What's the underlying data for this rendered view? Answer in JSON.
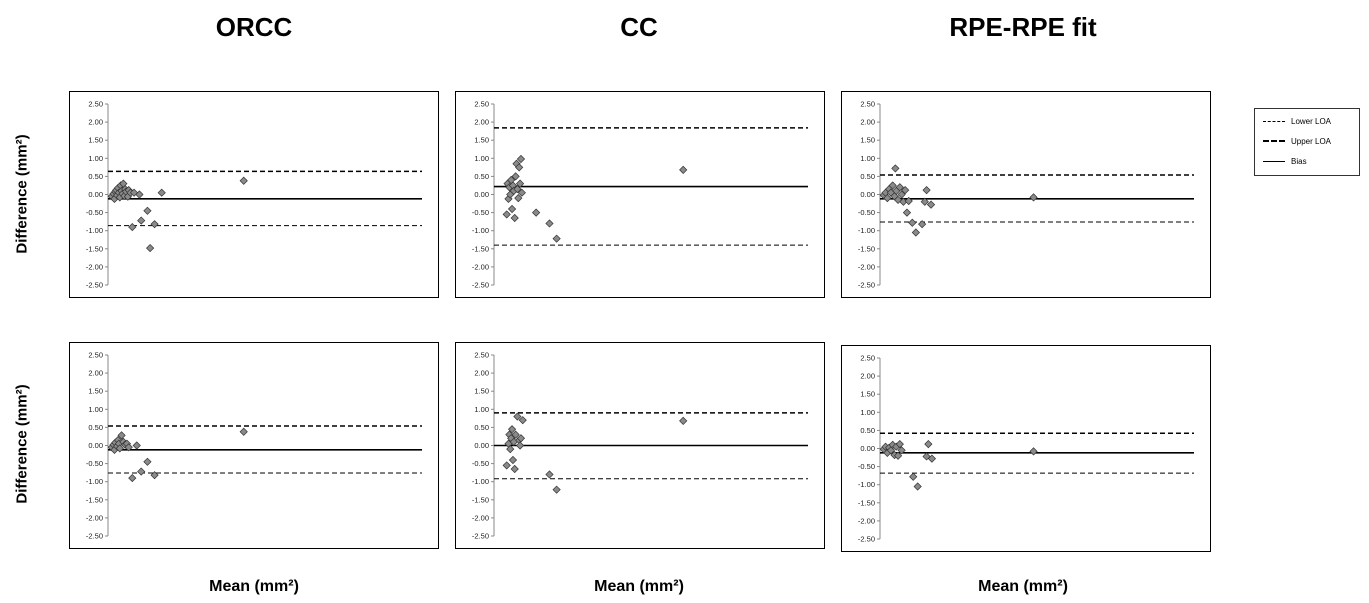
{
  "column_titles": [
    "ORCC",
    "CC",
    "RPE-RPE fit"
  ],
  "y_axis_label": "Difference (mm²)",
  "x_axis_label": "Mean (mm²)",
  "legend": [
    {
      "label": "Lower LOA",
      "style": "dashed",
      "width": 1
    },
    {
      "label": "Upper LOA",
      "style": "dashed",
      "width": 1.5
    },
    {
      "label": "Bias",
      "style": "solid",
      "width": 1
    }
  ],
  "chart_data": [
    {
      "type": "scatter",
      "title": "ORCC",
      "row": 1,
      "ylim": [
        -2.5,
        2.5
      ],
      "yticks": [
        "2.50",
        "2.00",
        "1.50",
        "1.00",
        "0.50",
        "0.00",
        "-0.50",
        "-1.00",
        "-1.50",
        "-2.00",
        "-2.50"
      ],
      "bias": -0.12,
      "lower_loa": -0.86,
      "upper_loa": 0.64,
      "points": [
        [
          0.02,
          -0.05
        ],
        [
          0.04,
          0.02
        ],
        [
          0.05,
          -0.12
        ],
        [
          0.06,
          0.08
        ],
        [
          0.07,
          0.12
        ],
        [
          0.08,
          -0.02
        ],
        [
          0.09,
          0.18
        ],
        [
          0.1,
          0.05
        ],
        [
          0.11,
          -0.08
        ],
        [
          0.12,
          0.25
        ],
        [
          0.13,
          0.1
        ],
        [
          0.14,
          0.02
        ],
        [
          0.15,
          0.3
        ],
        [
          0.16,
          -0.04
        ],
        [
          0.17,
          0.15
        ],
        [
          0.18,
          0.08
        ],
        [
          0.2,
          -0.06
        ],
        [
          0.21,
          0.12
        ],
        [
          0.23,
          0.05
        ],
        [
          0.25,
          -0.9
        ],
        [
          0.27,
          0.05
        ],
        [
          0.33,
          0.0
        ],
        [
          0.35,
          -0.72
        ],
        [
          0.42,
          -0.45
        ],
        [
          0.45,
          -1.48
        ],
        [
          0.5,
          -0.82
        ],
        [
          0.58,
          0.05
        ],
        [
          1.5,
          0.38
        ]
      ]
    },
    {
      "type": "scatter",
      "title": "CC",
      "row": 1,
      "ylim": [
        -2.5,
        2.5
      ],
      "yticks": [
        "2.50",
        "2.00",
        "1.50",
        "1.00",
        "0.50",
        "0.00",
        "-0.50",
        "-1.00",
        "-1.50",
        "-2.00",
        "-2.50"
      ],
      "bias": 0.22,
      "lower_loa": -1.4,
      "upper_loa": 1.84,
      "points": [
        [
          0.12,
          -0.55
        ],
        [
          0.13,
          0.3
        ],
        [
          0.14,
          -0.12
        ],
        [
          0.15,
          0.2
        ],
        [
          0.16,
          0.0
        ],
        [
          0.17,
          0.4
        ],
        [
          0.18,
          -0.4
        ],
        [
          0.19,
          0.25
        ],
        [
          0.2,
          0.1
        ],
        [
          0.21,
          -0.65
        ],
        [
          0.22,
          0.5
        ],
        [
          0.23,
          0.85
        ],
        [
          0.24,
          0.15
        ],
        [
          0.25,
          -0.1
        ],
        [
          0.26,
          0.75
        ],
        [
          0.27,
          0.3
        ],
        [
          0.28,
          0.98
        ],
        [
          0.29,
          0.05
        ],
        [
          0.45,
          -0.5
        ],
        [
          0.6,
          -0.8
        ],
        [
          0.68,
          -1.22
        ],
        [
          2.1,
          0.68
        ]
      ]
    },
    {
      "type": "scatter",
      "title": "RPE-RPE fit",
      "row": 1,
      "ylim": [
        -2.5,
        2.5
      ],
      "yticks": [
        "2.50",
        "2.00",
        "1.50",
        "1.00",
        "0.50",
        "0.00",
        "-0.50",
        "-1.00",
        "-1.50",
        "-2.00",
        "-2.50"
      ],
      "bias": -0.12,
      "lower_loa": -0.76,
      "upper_loa": 0.54,
      "points": [
        [
          0.02,
          -0.02
        ],
        [
          0.04,
          0.05
        ],
        [
          0.06,
          -0.1
        ],
        [
          0.08,
          0.15
        ],
        [
          0.1,
          0.05
        ],
        [
          0.12,
          0.25
        ],
        [
          0.14,
          -0.05
        ],
        [
          0.15,
          0.72
        ],
        [
          0.16,
          0.1
        ],
        [
          0.18,
          -0.15
        ],
        [
          0.2,
          0.2
        ],
        [
          0.22,
          0.0
        ],
        [
          0.24,
          -0.2
        ],
        [
          0.26,
          0.12
        ],
        [
          0.28,
          -0.5
        ],
        [
          0.3,
          -0.18
        ],
        [
          0.34,
          -0.78
        ],
        [
          0.38,
          -1.05
        ],
        [
          0.45,
          -0.82
        ],
        [
          0.48,
          -0.2
        ],
        [
          0.5,
          0.12
        ],
        [
          0.55,
          -0.28
        ],
        [
          1.7,
          -0.08
        ]
      ]
    },
    {
      "type": "scatter",
      "title": "ORCC",
      "row": 2,
      "ylim": [
        -2.5,
        2.5
      ],
      "yticks": [
        "2.50",
        "2.00",
        "1.50",
        "1.00",
        "0.50",
        "0.00",
        "-0.50",
        "-1.00",
        "-1.50",
        "-2.00",
        "-2.50"
      ],
      "bias": -0.12,
      "lower_loa": -0.76,
      "upper_loa": 0.54,
      "points": [
        [
          0.02,
          -0.05
        ],
        [
          0.04,
          0.02
        ],
        [
          0.05,
          -0.12
        ],
        [
          0.06,
          0.08
        ],
        [
          0.08,
          -0.02
        ],
        [
          0.09,
          0.15
        ],
        [
          0.1,
          0.05
        ],
        [
          0.11,
          -0.08
        ],
        [
          0.13,
          0.28
        ],
        [
          0.15,
          0.1
        ],
        [
          0.17,
          0.02
        ],
        [
          0.19,
          0.05
        ],
        [
          0.21,
          -0.05
        ],
        [
          0.25,
          -0.9
        ],
        [
          0.3,
          0.0
        ],
        [
          0.35,
          -0.72
        ],
        [
          0.42,
          -0.45
        ],
        [
          0.5,
          -0.82
        ],
        [
          1.5,
          0.38
        ]
      ]
    },
    {
      "type": "scatter",
      "title": "CC",
      "row": 2,
      "ylim": [
        -2.5,
        2.5
      ],
      "yticks": [
        "2.50",
        "2.00",
        "1.50",
        "1.00",
        "0.50",
        "0.00",
        "-0.50",
        "-1.00",
        "-1.50",
        "-2.00",
        "-2.50"
      ],
      "bias": 0.0,
      "lower_loa": -0.92,
      "upper_loa": 0.9,
      "points": [
        [
          0.12,
          -0.55
        ],
        [
          0.14,
          0.05
        ],
        [
          0.15,
          0.3
        ],
        [
          0.16,
          -0.1
        ],
        [
          0.17,
          0.2
        ],
        [
          0.18,
          0.45
        ],
        [
          0.19,
          -0.4
        ],
        [
          0.2,
          0.1
        ],
        [
          0.21,
          -0.65
        ],
        [
          0.22,
          0.3
        ],
        [
          0.24,
          0.8
        ],
        [
          0.26,
          0.15
        ],
        [
          0.27,
          0.0
        ],
        [
          0.28,
          0.2
        ],
        [
          0.3,
          0.7
        ],
        [
          0.6,
          -0.8
        ],
        [
          0.68,
          -1.22
        ],
        [
          2.1,
          0.68
        ]
      ]
    },
    {
      "type": "scatter",
      "title": "RPE-RPE fit",
      "row": 2,
      "ylim": [
        -2.5,
        2.5
      ],
      "yticks": [
        "2.50",
        "2.00",
        "1.50",
        "1.00",
        "0.50",
        "0.00",
        "-0.50",
        "-1.00",
        "-1.50",
        "-2.00",
        "-2.50"
      ],
      "bias": -0.12,
      "lower_loa": -0.68,
      "upper_loa": 0.42,
      "points": [
        [
          0.02,
          -0.02
        ],
        [
          0.04,
          0.05
        ],
        [
          0.06,
          -0.12
        ],
        [
          0.08,
          0.02
        ],
        [
          0.1,
          -0.05
        ],
        [
          0.12,
          0.1
        ],
        [
          0.14,
          -0.18
        ],
        [
          0.16,
          0.05
        ],
        [
          0.18,
          -0.2
        ],
        [
          0.2,
          0.12
        ],
        [
          0.22,
          -0.05
        ],
        [
          0.35,
          -0.78
        ],
        [
          0.4,
          -1.05
        ],
        [
          0.5,
          -0.22
        ],
        [
          0.52,
          0.12
        ],
        [
          0.56,
          -0.28
        ],
        [
          1.7,
          -0.08
        ]
      ]
    }
  ]
}
